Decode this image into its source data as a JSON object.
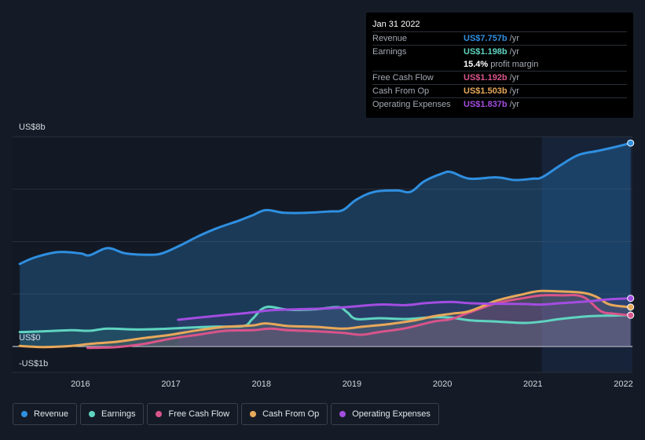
{
  "tooltip": {
    "date": "Jan 31 2022",
    "rows": [
      {
        "label": "Revenue",
        "value": "US$7.757b",
        "unit": "/yr",
        "color": "#2f8fe0"
      },
      {
        "label": "Earnings",
        "value": "US$1.198b",
        "unit": "/yr",
        "color": "#5fd4c0"
      },
      {
        "label": "",
        "value": "15.4%",
        "unit": "profit margin",
        "color": "#ffffff"
      },
      {
        "label": "Free Cash Flow",
        "value": "US$1.192b",
        "unit": "/yr",
        "color": "#d9548a"
      },
      {
        "label": "Cash From Op",
        "value": "US$1.503b",
        "unit": "/yr",
        "color": "#e8a85a"
      },
      {
        "label": "Operating Expenses",
        "value": "US$1.837b",
        "unit": "/yr",
        "color": "#a34de0"
      }
    ]
  },
  "legend": [
    {
      "label": "Revenue",
      "color": "#2f8fe0"
    },
    {
      "label": "Earnings",
      "color": "#5fd4c0"
    },
    {
      "label": "Free Cash Flow",
      "color": "#d9548a"
    },
    {
      "label": "Cash From Op",
      "color": "#e8a85a"
    },
    {
      "label": "Operating Expenses",
      "color": "#a34de0"
    }
  ],
  "chart_data": {
    "type": "line",
    "y_tick_labels": [
      "US$8b",
      "US$0",
      "-US$1b"
    ],
    "x_tick_labels": [
      "2016",
      "2017",
      "2018",
      "2019",
      "2020",
      "2021",
      "2022"
    ],
    "x_range": [
      2015.25,
      2022.1
    ],
    "ylim": [
      -1,
      8
    ],
    "grid": true,
    "legend_position": "bottom",
    "highlight_from": 2021.1,
    "series": [
      {
        "name": "Revenue",
        "color": "#2f8fe0",
        "x": [
          2015.33,
          2015.5,
          2015.75,
          2016.0,
          2016.1,
          2016.3,
          2016.5,
          2016.75,
          2016.9,
          2017.1,
          2017.3,
          2017.5,
          2017.75,
          2017.9,
          2018.05,
          2018.25,
          2018.5,
          2018.75,
          2018.9,
          2019.05,
          2019.25,
          2019.5,
          2019.65,
          2019.8,
          2020.0,
          2020.1,
          2020.3,
          2020.6,
          2020.8,
          2021.0,
          2021.1,
          2021.3,
          2021.5,
          2021.7,
          2021.9,
          2022.08
        ],
        "y": [
          3.15,
          3.4,
          3.6,
          3.55,
          3.48,
          3.75,
          3.55,
          3.5,
          3.55,
          3.85,
          4.2,
          4.5,
          4.8,
          5.0,
          5.2,
          5.1,
          5.1,
          5.15,
          5.2,
          5.6,
          5.9,
          5.95,
          5.9,
          6.3,
          6.6,
          6.65,
          6.4,
          6.45,
          6.35,
          6.4,
          6.45,
          6.9,
          7.3,
          7.45,
          7.6,
          7.757
        ]
      },
      {
        "name": "Earnings",
        "color": "#5fd4c0",
        "x": [
          2015.33,
          2015.6,
          2015.9,
          2016.1,
          2016.3,
          2016.6,
          2016.9,
          2017.2,
          2017.5,
          2017.8,
          2017.9,
          2018.05,
          2018.3,
          2018.6,
          2018.85,
          2018.95,
          2019.05,
          2019.3,
          2019.6,
          2019.9,
          2020.1,
          2020.3,
          2020.6,
          2020.9,
          2021.1,
          2021.3,
          2021.6,
          2021.9,
          2022.08
        ],
        "y": [
          0.55,
          0.58,
          0.62,
          0.6,
          0.68,
          0.65,
          0.67,
          0.72,
          0.76,
          0.78,
          1.05,
          1.5,
          1.4,
          1.42,
          1.5,
          1.3,
          1.05,
          1.08,
          1.05,
          1.12,
          1.1,
          1.0,
          0.95,
          0.9,
          0.95,
          1.05,
          1.15,
          1.18,
          1.198
        ]
      },
      {
        "name": "Free Cash Flow",
        "color": "#d9548a",
        "x": [
          2016.08,
          2016.4,
          2016.7,
          2017.0,
          2017.3,
          2017.6,
          2017.9,
          2018.1,
          2018.3,
          2018.6,
          2018.9,
          2019.1,
          2019.3,
          2019.6,
          2019.9,
          2020.1,
          2020.3,
          2020.6,
          2020.9,
          2021.1,
          2021.3,
          2021.55,
          2021.75,
          2021.9,
          2022.08
        ],
        "y": [
          -0.05,
          -0.02,
          0.1,
          0.3,
          0.45,
          0.6,
          0.62,
          0.68,
          0.62,
          0.58,
          0.52,
          0.45,
          0.55,
          0.7,
          0.95,
          1.05,
          1.3,
          1.65,
          1.85,
          1.95,
          1.95,
          1.9,
          1.35,
          1.25,
          1.192
        ]
      },
      {
        "name": "Cash From Op",
        "color": "#e8a85a",
        "x": [
          2015.33,
          2015.6,
          2015.9,
          2016.1,
          2016.4,
          2016.7,
          2017.0,
          2017.3,
          2017.6,
          2017.9,
          2018.05,
          2018.3,
          2018.6,
          2018.9,
          2019.1,
          2019.4,
          2019.7,
          2019.9,
          2020.1,
          2020.3,
          2020.6,
          2020.9,
          2021.0,
          2021.1,
          2021.3,
          2021.55,
          2021.7,
          2021.85,
          2022.08
        ],
        "y": [
          0.02,
          -0.02,
          0.02,
          0.1,
          0.18,
          0.32,
          0.45,
          0.62,
          0.75,
          0.8,
          0.88,
          0.78,
          0.75,
          0.68,
          0.75,
          0.85,
          1.0,
          1.15,
          1.25,
          1.35,
          1.75,
          2.0,
          2.08,
          2.12,
          2.1,
          2.05,
          1.9,
          1.6,
          1.503
        ]
      },
      {
        "name": "Operating Expenses",
        "color": "#a34de0",
        "x": [
          2017.08,
          2017.3,
          2017.6,
          2017.9,
          2018.1,
          2018.4,
          2018.7,
          2019.0,
          2019.3,
          2019.6,
          2019.8,
          2020.1,
          2020.3,
          2020.6,
          2020.9,
          2021.1,
          2021.3,
          2021.6,
          2021.85,
          2022.08
        ],
        "y": [
          1.02,
          1.1,
          1.2,
          1.3,
          1.38,
          1.42,
          1.45,
          1.52,
          1.6,
          1.58,
          1.65,
          1.7,
          1.65,
          1.63,
          1.62,
          1.6,
          1.65,
          1.72,
          1.8,
          1.837
        ]
      }
    ]
  }
}
